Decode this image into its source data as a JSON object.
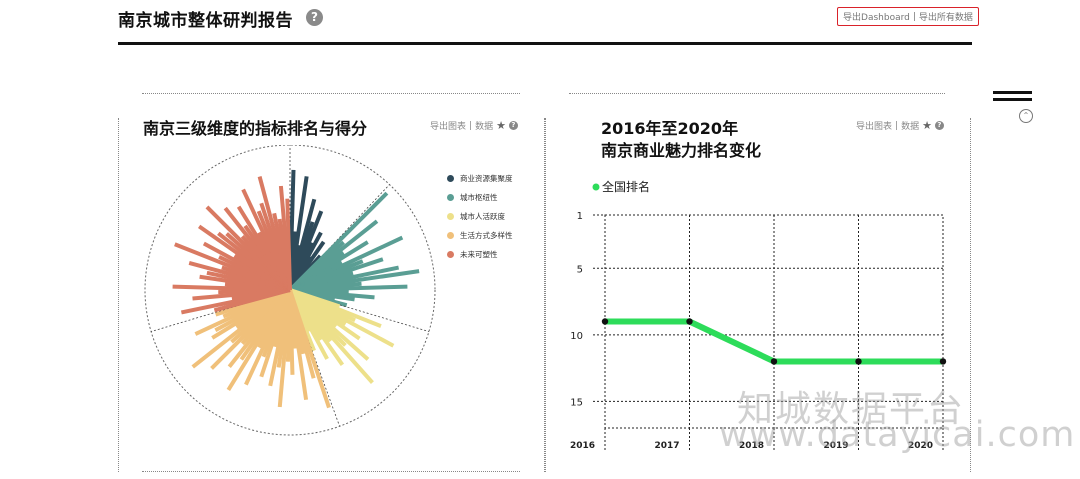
{
  "header": {
    "title": "南京城市整体研判报告",
    "help": "?",
    "export_dashboard": "导出Dashboard",
    "separator": "|",
    "export_all": "导出所有数据"
  },
  "left_card": {
    "title": "南京三级维度的指标排名与得分",
    "tools": {
      "export_chart": "导出图表",
      "sep": "|",
      "data": "数据",
      "star": "★",
      "help": "?"
    }
  },
  "right_card": {
    "title_line1": "2016年至2020年",
    "title_line2": "南京商业魅力排名变化",
    "tools": {
      "export_chart": "导出图表",
      "sep": "|",
      "data": "数据",
      "star": "★",
      "help": "?"
    }
  },
  "watermark": {
    "line1": "知城数据平台",
    "line2": "www.datayicai.com"
  },
  "chart_data": [
    {
      "type": "radial-bar",
      "title": "南京三级维度的指标排名与得分",
      "legend_position": "right",
      "series": [
        {
          "name": "商业资源集聚度",
          "color": "#2e4a5a",
          "values": [
            0.92,
            0.45,
            0.88,
            0.35,
            0.72,
            0.55,
            0.65,
            0.4,
            0.5,
            0.3,
            0.45,
            0.25,
            0.35
          ]
        },
        {
          "name": "城市枢纽性",
          "color": "#5a9e94",
          "values": [
            1.05,
            0.55,
            0.85,
            0.5,
            0.7,
            0.45,
            0.95,
            0.6,
            0.75,
            0.5,
            0.85,
            1.0,
            0.55,
            0.9,
            0.45,
            0.65,
            0.5,
            0.35,
            0.45
          ]
        },
        {
          "name": "城市人活跃度",
          "color": "#ede08a",
          "values": [
            0.4,
            0.75,
            0.55,
            0.9,
            0.5,
            0.65,
            0.45,
            0.8,
            0.6,
            0.95,
            0.5,
            0.7,
            0.45,
            0.6,
            0.35,
            0.5
          ]
        },
        {
          "name": "生活方式多样性",
          "color": "#f0c07a",
          "values": [
            0.95,
            0.7,
            0.5,
            0.85,
            0.45,
            0.65,
            0.55,
            0.9,
            0.6,
            0.75,
            0.45,
            0.7,
            0.55,
            0.8,
            0.5,
            0.9,
            0.65,
            0.75,
            0.55,
            0.85,
            0.6,
            0.95,
            0.5,
            0.7,
            0.65,
            0.8,
            0.55,
            0.6
          ]
        },
        {
          "name": "未来可塑性",
          "color": "#d97a62",
          "values": [
            0.6,
            0.85,
            0.45,
            0.75,
            0.55,
            0.9,
            0.5,
            0.7,
            0.65,
            0.8,
            0.55,
            0.95,
            0.6,
            0.75,
            0.5,
            0.85,
            0.7,
            0.65,
            0.9,
            0.55,
            0.8,
            0.6,
            0.75,
            0.5,
            0.85,
            0.65,
            0.7,
            0.9,
            0.6,
            0.55,
            0.8,
            0.7
          ]
        }
      ]
    },
    {
      "type": "line",
      "title": "2016年至2020年 南京商业魅力排名变化",
      "categories": [
        "2016",
        "2017",
        "2018",
        "2019",
        "2020"
      ],
      "series": [
        {
          "name": "全国排名",
          "color": "#2ddc5a",
          "values": [
            9,
            9,
            12,
            12,
            12
          ]
        }
      ],
      "ylim": [
        1,
        17
      ],
      "yticks": [
        "1",
        "5",
        "10",
        "15"
      ],
      "y_reversed": true,
      "grid": true,
      "legend_position": "top-left"
    }
  ]
}
